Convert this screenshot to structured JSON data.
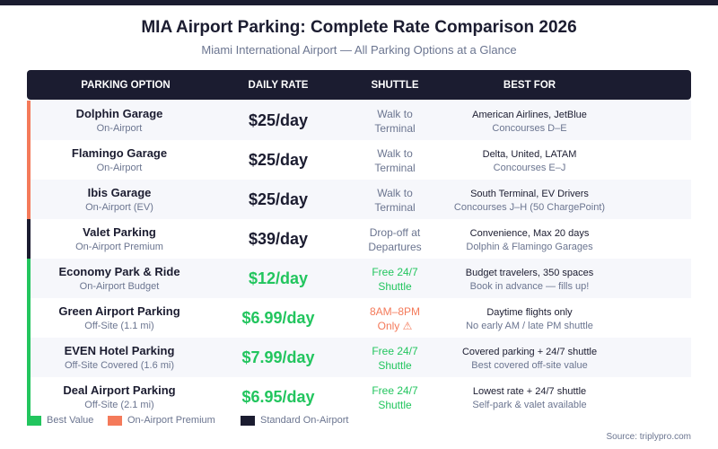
{
  "title": "MIA Airport Parking: Complete Rate Comparison 2026",
  "subtitle": "Miami International Airport — All Parking Options at a Glance",
  "columns": [
    "PARKING OPTION",
    "DAILY RATE",
    "SHUTTLE",
    "BEST FOR"
  ],
  "colors": {
    "best_value": "#22c55e",
    "premium": "#f47a5a",
    "standard": "#1b1c30"
  },
  "rows": [
    {
      "name": "Dolphin Garage",
      "type": "On-Airport",
      "rate": "$25/day",
      "shuttle1": "Walk to",
      "shuttle2": "Terminal",
      "best1": "American Airlines, JetBlue",
      "best2": "Concourses D–E",
      "category": "premium"
    },
    {
      "name": "Flamingo Garage",
      "type": "On-Airport",
      "rate": "$25/day",
      "shuttle1": "Walk to",
      "shuttle2": "Terminal",
      "best1": "Delta, United, LATAM",
      "best2": "Concourses E–J",
      "category": "premium"
    },
    {
      "name": "Ibis Garage",
      "type": "On-Airport (EV)",
      "rate": "$25/day",
      "shuttle1": "Walk to",
      "shuttle2": "Terminal",
      "best1": "South Terminal, EV Drivers",
      "best2": "Concourses J–H (50 ChargePoint)",
      "category": "premium"
    },
    {
      "name": "Valet Parking",
      "type": "On-Airport Premium",
      "rate": "$39/day",
      "shuttle1": "Drop-off at",
      "shuttle2": "Departures",
      "best1": "Convenience, Max 20 days",
      "best2": "Dolphin & Flamingo Garages",
      "category": "standard"
    },
    {
      "name": "Economy Park & Ride",
      "type": "On-Airport Budget",
      "rate": "$12/day",
      "shuttle1": "Free 24/7",
      "shuttle2": "Shuttle",
      "best1": "Budget travelers, 350 spaces",
      "best2": "Book in advance — fills up!",
      "category": "best_value"
    },
    {
      "name": "Green Airport Parking",
      "type": "Off-Site (1.1 mi)",
      "rate": "$6.99/day",
      "shuttle1": "8AM–8PM",
      "shuttle2": "Only ⚠",
      "best1": "Daytime flights only",
      "best2": "No early AM / late PM shuttle",
      "category": "best_value",
      "shuttle_warning": true
    },
    {
      "name": "EVEN Hotel Parking",
      "type": "Off-Site Covered (1.6 mi)",
      "rate": "$7.99/day",
      "shuttle1": "Free 24/7",
      "shuttle2": "Shuttle",
      "best1": "Covered parking + 24/7 shuttle",
      "best2": "Best covered off-site value",
      "category": "best_value"
    },
    {
      "name": "Deal Airport Parking",
      "type": "Off-Site (2.1 mi)",
      "rate": "$6.95/day",
      "shuttle1": "Free 24/7",
      "shuttle2": "Shuttle",
      "best1": "Lowest rate + 24/7 shuttle",
      "best2": "Self-park & valet available",
      "category": "best_value"
    }
  ],
  "legend": [
    "Best Value",
    "On-Airport Premium",
    "Standard On-Airport"
  ],
  "source": "Source: triplypro.com"
}
